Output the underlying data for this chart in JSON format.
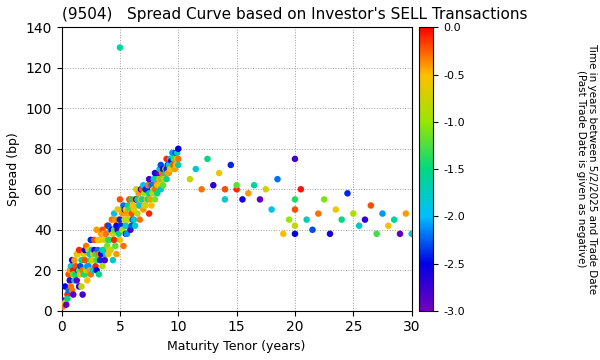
{
  "title": "(9504)   Spread Curve based on Investor's SELL Transactions",
  "xlabel": "Maturity Tenor (years)",
  "ylabel": "Spread (bp)",
  "colorbar_label": "Time in years between 5/2/2025 and Trade Date\n(Past Trade Date is given as negative)",
  "colorbar_ticks": [
    0.0,
    -0.5,
    -1.0,
    -1.5,
    -2.0,
    -2.5,
    -3.0
  ],
  "xlim": [
    0,
    30
  ],
  "ylim": [
    0,
    140
  ],
  "xticks": [
    0,
    5,
    10,
    15,
    20,
    25,
    30
  ],
  "yticks": [
    0,
    20,
    40,
    60,
    80,
    100,
    120,
    140
  ],
  "scatter_data": [
    [
      0.1,
      2,
      -0.3
    ],
    [
      0.2,
      5,
      -2.8
    ],
    [
      0.3,
      12,
      -2.5
    ],
    [
      0.3,
      4,
      -0.6
    ],
    [
      0.4,
      3,
      -2.9
    ],
    [
      0.5,
      8,
      -0.1
    ],
    [
      0.5,
      6,
      -1.5
    ],
    [
      0.6,
      18,
      -0.2
    ],
    [
      0.6,
      10,
      -2.2
    ],
    [
      0.7,
      15,
      -2.7
    ],
    [
      0.7,
      20,
      -0.4
    ],
    [
      0.8,
      22,
      -1.8
    ],
    [
      0.8,
      12,
      -0.3
    ],
    [
      0.9,
      10,
      -0.3
    ],
    [
      0.9,
      25,
      -2.6
    ],
    [
      1.0,
      20,
      -0.05
    ],
    [
      1.0,
      18,
      -1.2
    ],
    [
      1.0,
      8,
      -2.9
    ],
    [
      1.1,
      25,
      -0.4
    ],
    [
      1.1,
      15,
      -1.8
    ],
    [
      1.2,
      18,
      -1.5
    ],
    [
      1.2,
      22,
      -0.2
    ],
    [
      1.3,
      15,
      -2.9
    ],
    [
      1.3,
      28,
      -0.7
    ],
    [
      1.4,
      28,
      -0.6
    ],
    [
      1.4,
      20,
      -2.3
    ],
    [
      1.5,
      20,
      -1.2
    ],
    [
      1.5,
      30,
      -0.1
    ],
    [
      1.5,
      12,
      -2.7
    ],
    [
      1.6,
      22,
      -2.3
    ],
    [
      1.6,
      18,
      -0.5
    ],
    [
      1.7,
      12,
      -0.8
    ],
    [
      1.7,
      25,
      -1.6
    ],
    [
      1.8,
      8,
      -2.8
    ],
    [
      1.8,
      20,
      -0.3
    ],
    [
      1.9,
      18,
      -1.9
    ],
    [
      1.9,
      28,
      -0.6
    ],
    [
      2.0,
      25,
      -0.2
    ],
    [
      2.0,
      30,
      -2.5
    ],
    [
      2.0,
      18,
      -1.4
    ],
    [
      2.1,
      20,
      -1.0
    ],
    [
      2.1,
      32,
      -0.3
    ],
    [
      2.2,
      15,
      -0.5
    ],
    [
      2.2,
      22,
      -2.1
    ],
    [
      2.3,
      22,
      -2.1
    ],
    [
      2.3,
      30,
      -0.8
    ],
    [
      2.4,
      28,
      -1.6
    ],
    [
      2.4,
      20,
      -0.4
    ],
    [
      2.5,
      18,
      -0.3
    ],
    [
      2.5,
      35,
      -2.4
    ],
    [
      2.5,
      25,
      -1.5
    ],
    [
      2.6,
      25,
      -0.7
    ],
    [
      2.6,
      30,
      -2.0
    ],
    [
      2.7,
      20,
      -1.8
    ],
    [
      2.7,
      28,
      -0.5
    ],
    [
      2.8,
      30,
      -2.7
    ],
    [
      2.8,
      35,
      -0.2
    ],
    [
      2.9,
      22,
      -0.1
    ],
    [
      2.9,
      28,
      -1.3
    ],
    [
      3.0,
      25,
      -1.3
    ],
    [
      3.0,
      40,
      -0.4
    ],
    [
      3.0,
      20,
      -2.5
    ],
    [
      3.1,
      30,
      -2.2
    ],
    [
      3.1,
      35,
      -0.6
    ],
    [
      3.2,
      18,
      -1.5
    ],
    [
      3.2,
      28,
      -0.3
    ],
    [
      3.3,
      35,
      -0.6
    ],
    [
      3.3,
      25,
      -2.4
    ],
    [
      3.4,
      28,
      -2.6
    ],
    [
      3.4,
      38,
      -0.4
    ],
    [
      3.5,
      22,
      -0.9
    ],
    [
      3.5,
      40,
      -0.2
    ],
    [
      3.5,
      30,
      -1.8
    ],
    [
      3.6,
      30,
      -1.7
    ],
    [
      3.6,
      38,
      -0.5
    ],
    [
      3.7,
      25,
      -2.8
    ],
    [
      3.7,
      35,
      -0.7
    ],
    [
      3.8,
      38,
      -0.3
    ],
    [
      3.8,
      28,
      -1.9
    ],
    [
      3.9,
      32,
      -1.1
    ],
    [
      3.9,
      42,
      -0.2
    ],
    [
      4.0,
      28,
      -0.5
    ],
    [
      4.0,
      42,
      -2.3
    ],
    [
      4.0,
      35,
      -1.4
    ],
    [
      4.1,
      35,
      -1.4
    ],
    [
      4.1,
      30,
      -0.6
    ],
    [
      4.2,
      30,
      -0.7
    ],
    [
      4.2,
      40,
      -2.1
    ],
    [
      4.3,
      40,
      -2.5
    ],
    [
      4.3,
      45,
      -0.3
    ],
    [
      4.4,
      25,
      -1.8
    ],
    [
      4.4,
      38,
      -0.8
    ],
    [
      4.5,
      35,
      -0.1
    ],
    [
      4.5,
      48,
      -2.0
    ],
    [
      4.5,
      40,
      -1.2
    ],
    [
      4.6,
      32,
      -1.2
    ],
    [
      4.6,
      45,
      -0.4
    ],
    [
      4.7,
      28,
      -0.4
    ],
    [
      4.7,
      42,
      -2.5
    ],
    [
      4.8,
      40,
      -2.7
    ],
    [
      4.8,
      50,
      -0.5
    ],
    [
      4.9,
      38,
      -1.5
    ],
    [
      4.9,
      45,
      -0.3
    ],
    [
      5.0,
      35,
      -0.6
    ],
    [
      5.0,
      55,
      -0.2
    ],
    [
      5.0,
      130,
      -1.6
    ],
    [
      5.0,
      45,
      -2.4
    ],
    [
      5.1,
      42,
      -2.4
    ],
    [
      5.1,
      50,
      -0.7
    ],
    [
      5.2,
      40,
      -1.0
    ],
    [
      5.2,
      48,
      -0.4
    ],
    [
      5.3,
      32,
      -0.3
    ],
    [
      5.3,
      52,
      -2.2
    ],
    [
      5.4,
      50,
      -2.6
    ],
    [
      5.4,
      45,
      -0.8
    ],
    [
      5.5,
      42,
      -1.7
    ],
    [
      5.5,
      50,
      -0.5
    ],
    [
      5.5,
      38,
      -2.8
    ],
    [
      5.6,
      38,
      -2.1
    ],
    [
      5.6,
      48,
      -0.4
    ],
    [
      5.7,
      45,
      -0.8
    ],
    [
      5.7,
      52,
      -1.5
    ],
    [
      5.8,
      50,
      -1.3
    ],
    [
      5.8,
      55,
      -0.2
    ],
    [
      5.9,
      40,
      -2.8
    ],
    [
      5.9,
      48,
      -0.6
    ],
    [
      6.0,
      48,
      -0.2
    ],
    [
      6.0,
      55,
      -1.5
    ],
    [
      6.0,
      42,
      -2.3
    ],
    [
      6.1,
      45,
      -2.3
    ],
    [
      6.1,
      52,
      -0.5
    ],
    [
      6.2,
      50,
      -0.6
    ],
    [
      6.2,
      45,
      -1.8
    ],
    [
      6.3,
      42,
      -1.8
    ],
    [
      6.3,
      55,
      -0.3
    ],
    [
      6.4,
      55,
      -2.5
    ],
    [
      6.4,
      60,
      -0.7
    ],
    [
      6.5,
      48,
      -0.9
    ],
    [
      6.5,
      55,
      -1.6
    ],
    [
      6.6,
      52,
      -1.2
    ],
    [
      6.6,
      58,
      -0.4
    ],
    [
      6.7,
      45,
      -0.3
    ],
    [
      6.7,
      52,
      -2.0
    ],
    [
      6.8,
      60,
      -2.7
    ],
    [
      6.8,
      55,
      -0.8
    ],
    [
      6.9,
      55,
      -1.6
    ],
    [
      6.9,
      60,
      -0.2
    ],
    [
      7.0,
      50,
      -0.4
    ],
    [
      7.0,
      62,
      -2.0
    ],
    [
      7.1,
      58,
      -1.0
    ],
    [
      7.1,
      52,
      -0.5
    ],
    [
      7.2,
      52,
      -0.7
    ],
    [
      7.2,
      60,
      -2.4
    ],
    [
      7.3,
      60,
      -2.4
    ],
    [
      7.3,
      55,
      -0.6
    ],
    [
      7.4,
      55,
      -1.4
    ],
    [
      7.4,
      62,
      -0.3
    ],
    [
      7.5,
      48,
      -0.1
    ],
    [
      7.5,
      65,
      -2.8
    ],
    [
      7.5,
      58,
      -1.5
    ],
    [
      7.6,
      58,
      -1.7
    ],
    [
      7.6,
      55,
      -0.4
    ],
    [
      7.7,
      52,
      -0.5
    ],
    [
      7.7,
      62,
      -2.2
    ],
    [
      7.8,
      62,
      -2.2
    ],
    [
      7.8,
      58,
      -0.8
    ],
    [
      7.9,
      60,
      -0.8
    ],
    [
      7.9,
      65,
      -1.9
    ],
    [
      8.0,
      55,
      -1.1
    ],
    [
      8.0,
      68,
      -2.6
    ],
    [
      8.0,
      60,
      -0.3
    ],
    [
      8.1,
      62,
      -0.2
    ],
    [
      8.1,
      65,
      -1.5
    ],
    [
      8.2,
      58,
      -1.5
    ],
    [
      8.2,
      62,
      -0.5
    ],
    [
      8.3,
      68,
      -2.9
    ],
    [
      8.3,
      62,
      -0.6
    ],
    [
      8.4,
      65,
      -0.6
    ],
    [
      8.4,
      70,
      -1.8
    ],
    [
      8.5,
      60,
      -1.8
    ],
    [
      8.5,
      72,
      -2.3
    ],
    [
      8.5,
      65,
      -0.4
    ],
    [
      8.6,
      68,
      -0.3
    ],
    [
      8.6,
      65,
      -1.2
    ],
    [
      8.7,
      62,
      -1.2
    ],
    [
      8.7,
      70,
      -2.7
    ],
    [
      8.8,
      70,
      -2.7
    ],
    [
      8.8,
      65,
      -0.5
    ],
    [
      8.9,
      70,
      -0.9
    ],
    [
      8.9,
      68,
      -1.6
    ],
    [
      9.0,
      65,
      -1.6
    ],
    [
      9.0,
      75,
      -0.1
    ],
    [
      9.0,
      70,
      -2.4
    ],
    [
      9.1,
      72,
      -2.4
    ],
    [
      9.1,
      68,
      -0.4
    ],
    [
      9.2,
      68,
      -0.4
    ],
    [
      9.2,
      72,
      -1.9
    ],
    [
      9.3,
      75,
      -1.9
    ],
    [
      9.3,
      70,
      -0.5
    ],
    [
      9.4,
      74,
      -2.6
    ],
    [
      9.4,
      70,
      -0.7
    ],
    [
      9.5,
      70,
      -0.7
    ],
    [
      9.5,
      78,
      -2.1
    ],
    [
      9.5,
      72,
      -1.4
    ],
    [
      9.6,
      72,
      -0.2
    ],
    [
      9.6,
      75,
      -1.3
    ],
    [
      9.7,
      75,
      -1.3
    ],
    [
      9.7,
      70,
      -0.4
    ],
    [
      9.8,
      78,
      -2.8
    ],
    [
      9.8,
      72,
      -0.6
    ],
    [
      9.9,
      75,
      -0.5
    ],
    [
      9.9,
      78,
      -1.7
    ],
    [
      10.0,
      72,
      -1.7
    ],
    [
      10.0,
      80,
      -2.5
    ],
    [
      10.0,
      75,
      -0.3
    ],
    [
      11.0,
      65,
      -0.8
    ],
    [
      11.5,
      70,
      -1.8
    ],
    [
      12.0,
      60,
      -0.3
    ],
    [
      12.5,
      75,
      -1.5
    ],
    [
      13.0,
      62,
      -2.7
    ],
    [
      13.5,
      68,
      -0.6
    ],
    [
      14.0,
      55,
      -1.8
    ],
    [
      14.5,
      72,
      -2.4
    ],
    [
      14.0,
      60,
      -0.2
    ],
    [
      15.0,
      60,
      -0.1
    ],
    [
      15.0,
      62,
      -1.2
    ],
    [
      15.5,
      55,
      -2.6
    ],
    [
      16.0,
      58,
      -0.4
    ],
    [
      16.5,
      62,
      -1.6
    ],
    [
      17.0,
      55,
      -2.9
    ],
    [
      17.5,
      60,
      -0.7
    ],
    [
      18.0,
      50,
      -1.9
    ],
    [
      18.5,
      65,
      -2.2
    ],
    [
      19.0,
      38,
      -0.5
    ],
    [
      19.5,
      45,
      -1.0
    ],
    [
      20.0,
      38,
      -2.5
    ],
    [
      20.0,
      50,
      -0.2
    ],
    [
      20.0,
      55,
      -1.4
    ],
    [
      20.0,
      75,
      -2.8
    ],
    [
      20.0,
      42,
      -0.8
    ],
    [
      20.5,
      60,
      -0.05
    ],
    [
      21.0,
      45,
      -1.7
    ],
    [
      21.5,
      40,
      -2.3
    ],
    [
      22.0,
      48,
      -0.3
    ],
    [
      22.5,
      55,
      -1.1
    ],
    [
      23.0,
      38,
      -2.6
    ],
    [
      23.5,
      50,
      -0.6
    ],
    [
      24.0,
      45,
      -1.5
    ],
    [
      24.5,
      58,
      -2.4
    ],
    [
      25.0,
      48,
      -0.9
    ],
    [
      25.5,
      42,
      -1.8
    ],
    [
      26.0,
      45,
      -2.7
    ],
    [
      26.5,
      52,
      -0.2
    ],
    [
      27.0,
      38,
      -1.3
    ],
    [
      27.5,
      48,
      -2.1
    ],
    [
      28.0,
      42,
      -0.5
    ],
    [
      28.5,
      45,
      -1.6
    ],
    [
      29.0,
      38,
      -2.9
    ],
    [
      29.5,
      48,
      -0.4
    ],
    [
      30.0,
      38,
      -1.9
    ]
  ],
  "background_color": "#ffffff",
  "dot_size": 22
}
